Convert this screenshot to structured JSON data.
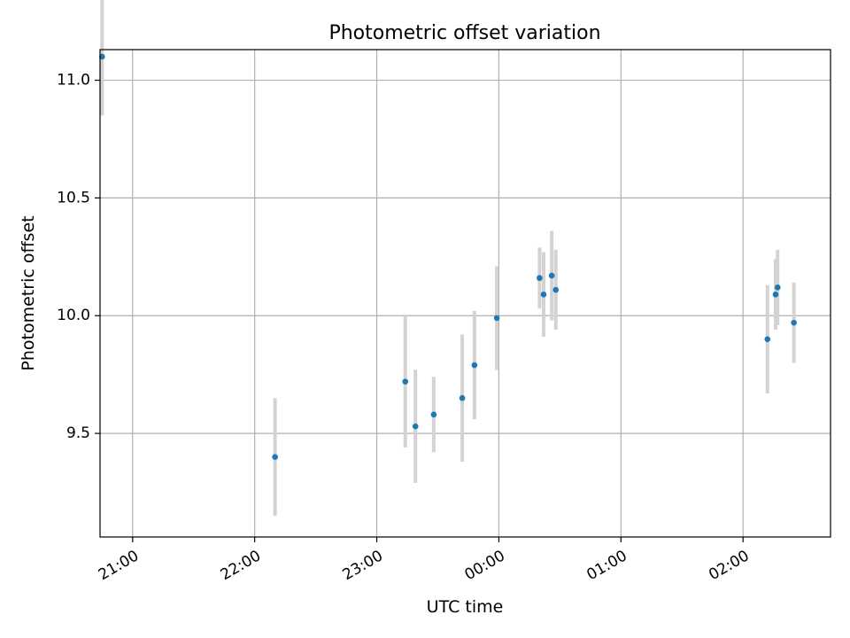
{
  "chart_data": {
    "type": "scatter",
    "title": "Photometric offset variation",
    "xlabel": "UTC time",
    "ylabel": "Photometric offset",
    "x_axis_kind": "time",
    "xlim": [
      "20:44",
      "02:43"
    ],
    "ylim": [
      9.06,
      11.13
    ],
    "xticks": [
      {
        "time": "21:00",
        "label": "21:00"
      },
      {
        "time": "22:00",
        "label": "22:00"
      },
      {
        "time": "23:00",
        "label": "23:00"
      },
      {
        "time": "00:00",
        "label": "00:00"
      },
      {
        "time": "01:00",
        "label": "01:00"
      },
      {
        "time": "02:00",
        "label": "02:00"
      }
    ],
    "yticks": [
      9.5,
      10.0,
      10.5,
      11.0
    ],
    "ytick_labels": [
      "9.5",
      "10.0",
      "10.5",
      "11.0"
    ],
    "grid": true,
    "legend": "none",
    "marker_color": "#1f77b4",
    "errorbar_color": "#d3d3d3",
    "points": [
      {
        "time": "20:45",
        "y": 11.1,
        "err": 0.25
      },
      {
        "time": "22:10",
        "y": 9.4,
        "err": 0.25
      },
      {
        "time": "23:14",
        "y": 9.72,
        "err": 0.28
      },
      {
        "time": "23:19",
        "y": 9.53,
        "err": 0.24
      },
      {
        "time": "23:28",
        "y": 9.58,
        "err": 0.16
      },
      {
        "time": "23:42",
        "y": 9.65,
        "err": 0.27
      },
      {
        "time": "23:48",
        "y": 9.79,
        "err": 0.23
      },
      {
        "time": "23:59",
        "y": 9.99,
        "err": 0.22
      },
      {
        "time": "00:20",
        "y": 10.16,
        "err": 0.13
      },
      {
        "time": "00:22",
        "y": 10.09,
        "err": 0.18
      },
      {
        "time": "00:26",
        "y": 10.17,
        "err": 0.19
      },
      {
        "time": "00:28",
        "y": 10.11,
        "err": 0.17
      },
      {
        "time": "02:12",
        "y": 9.9,
        "err": 0.23
      },
      {
        "time": "02:16",
        "y": 10.09,
        "err": 0.15
      },
      {
        "time": "02:17",
        "y": 10.12,
        "err": 0.16
      },
      {
        "time": "02:25",
        "y": 9.97,
        "err": 0.17
      }
    ]
  }
}
